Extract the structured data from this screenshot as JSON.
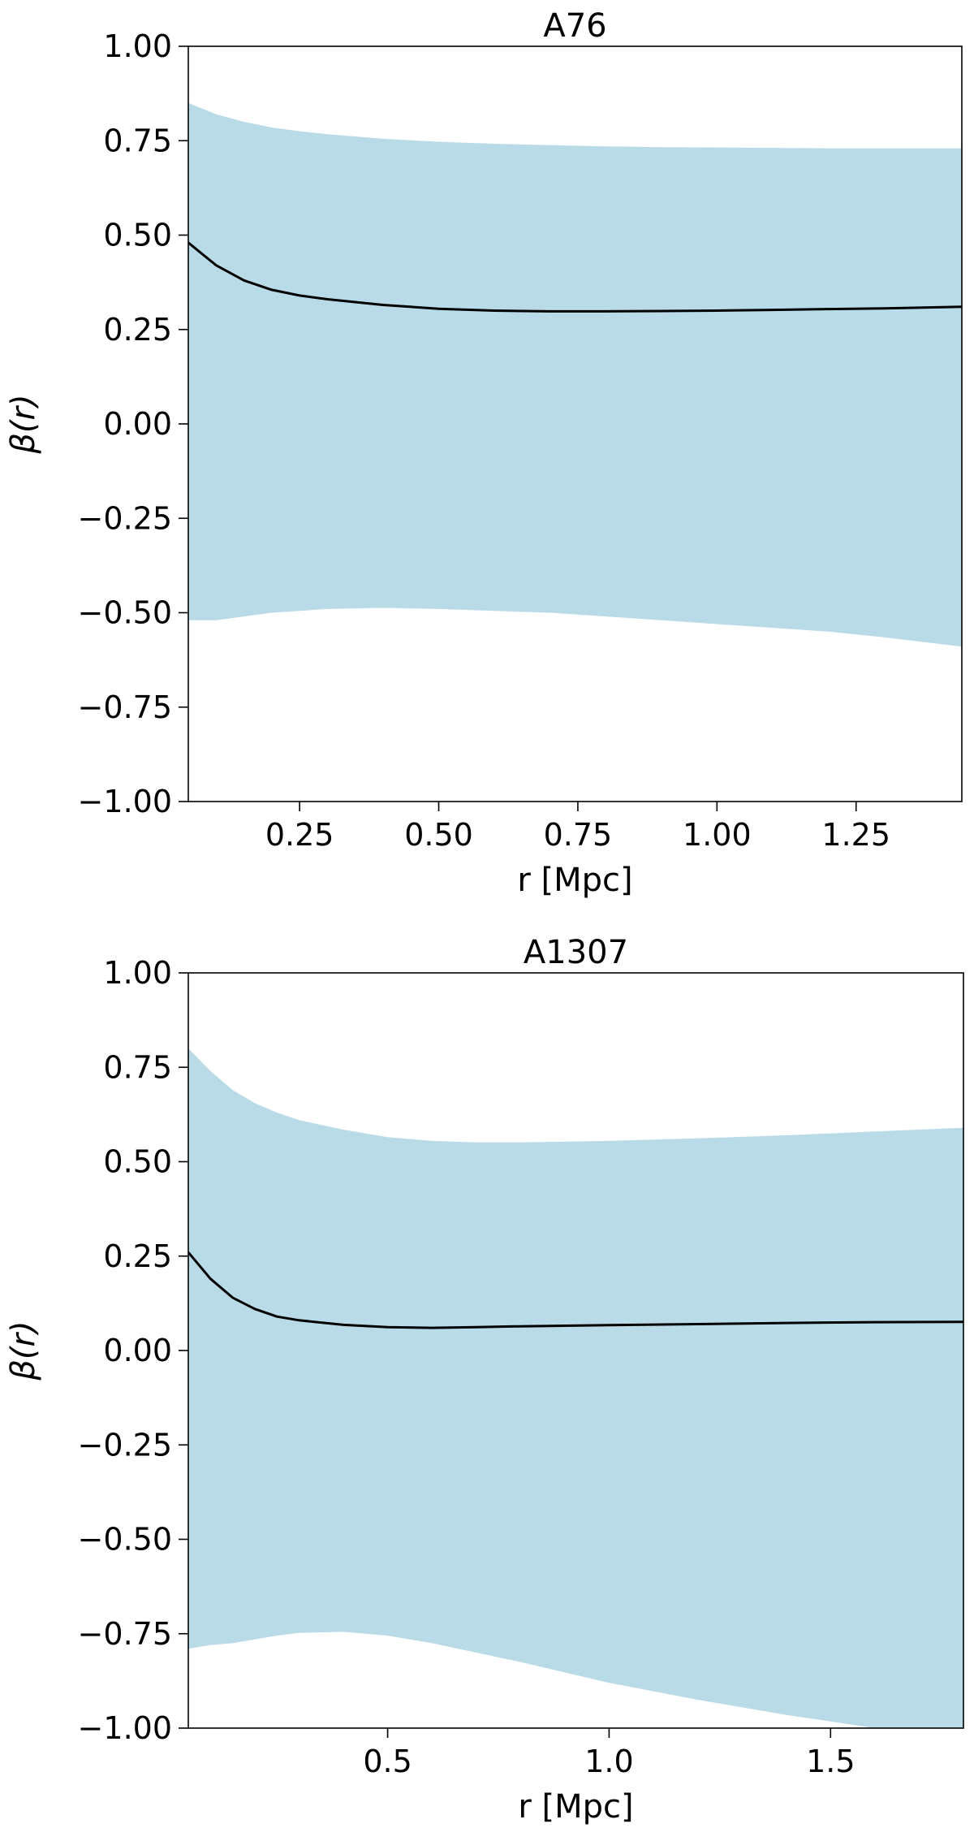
{
  "chart_data": [
    {
      "type": "line",
      "title": "A76",
      "xlabel": "r [Mpc]",
      "ylabel": "β(r)",
      "xlim": [
        0.05,
        1.44
      ],
      "ylim": [
        -1.0,
        1.0
      ],
      "xticks": [
        0.25,
        0.5,
        0.75,
        1.0,
        1.25
      ],
      "xtick_labels": [
        "0.25",
        "0.50",
        "0.75",
        "1.00",
        "1.25"
      ],
      "yticks": [
        1.0,
        0.75,
        0.5,
        0.25,
        0.0,
        -0.25,
        -0.5,
        -0.75,
        -1.0
      ],
      "ytick_labels": [
        "1.00",
        "0.75",
        "0.50",
        "0.25",
        "0.00",
        "−0.25",
        "−0.50",
        "−0.75",
        "−1.00"
      ],
      "grid": false,
      "band_color": "#b9dbe7",
      "line_color": "#000000",
      "series": [
        {
          "kind": "line",
          "x": [
            0.05,
            0.1,
            0.15,
            0.2,
            0.25,
            0.3,
            0.4,
            0.5,
            0.6,
            0.7,
            0.8,
            0.9,
            1.0,
            1.1,
            1.2,
            1.3,
            1.44
          ],
          "values": [
            0.48,
            0.42,
            0.38,
            0.355,
            0.34,
            0.33,
            0.315,
            0.305,
            0.3,
            0.298,
            0.298,
            0.299,
            0.3,
            0.302,
            0.304,
            0.306,
            0.31
          ]
        },
        {
          "kind": "band",
          "x": [
            0.05,
            0.1,
            0.15,
            0.2,
            0.25,
            0.3,
            0.4,
            0.5,
            0.6,
            0.7,
            0.8,
            0.9,
            1.0,
            1.1,
            1.2,
            1.3,
            1.44
          ],
          "upper": [
            0.85,
            0.82,
            0.8,
            0.785,
            0.775,
            0.767,
            0.755,
            0.747,
            0.742,
            0.738,
            0.735,
            0.733,
            0.732,
            0.731,
            0.73,
            0.73,
            0.73
          ],
          "lower": [
            -0.52,
            -0.52,
            -0.51,
            -0.5,
            -0.495,
            -0.49,
            -0.487,
            -0.49,
            -0.495,
            -0.5,
            -0.51,
            -0.52,
            -0.53,
            -0.54,
            -0.55,
            -0.565,
            -0.59
          ]
        }
      ]
    },
    {
      "type": "line",
      "title": "A1307",
      "xlabel": "r [Mpc]",
      "ylabel": "β(r)",
      "xlim": [
        0.05,
        1.8
      ],
      "ylim": [
        -1.0,
        1.0
      ],
      "xticks": [
        0.5,
        1.0,
        1.5
      ],
      "xtick_labels": [
        "0.5",
        "1.0",
        "1.5"
      ],
      "yticks": [
        1.0,
        0.75,
        0.5,
        0.25,
        0.0,
        -0.25,
        -0.5,
        -0.75,
        -1.0
      ],
      "ytick_labels": [
        "1.00",
        "0.75",
        "0.50",
        "0.25",
        "0.00",
        "−0.25",
        "−0.50",
        "−0.75",
        "−1.00"
      ],
      "grid": false,
      "band_color": "#b9dbe7",
      "line_color": "#000000",
      "series": [
        {
          "kind": "line",
          "x": [
            0.05,
            0.1,
            0.15,
            0.2,
            0.25,
            0.3,
            0.4,
            0.5,
            0.6,
            0.7,
            0.8,
            1.0,
            1.2,
            1.4,
            1.6,
            1.8
          ],
          "values": [
            0.26,
            0.19,
            0.14,
            0.11,
            0.09,
            0.08,
            0.068,
            0.062,
            0.06,
            0.062,
            0.064,
            0.067,
            0.07,
            0.073,
            0.075,
            0.076
          ]
        },
        {
          "kind": "band",
          "x": [
            0.05,
            0.1,
            0.15,
            0.2,
            0.25,
            0.3,
            0.4,
            0.5,
            0.6,
            0.7,
            0.8,
            1.0,
            1.2,
            1.4,
            1.6,
            1.8
          ],
          "upper": [
            0.8,
            0.74,
            0.69,
            0.655,
            0.63,
            0.61,
            0.585,
            0.565,
            0.555,
            0.551,
            0.551,
            0.555,
            0.562,
            0.57,
            0.58,
            0.59
          ],
          "lower": [
            -0.79,
            -0.78,
            -0.775,
            -0.765,
            -0.755,
            -0.748,
            -0.745,
            -0.755,
            -0.775,
            -0.8,
            -0.825,
            -0.88,
            -0.925,
            -0.965,
            -1.0,
            -1.0
          ]
        }
      ]
    }
  ]
}
